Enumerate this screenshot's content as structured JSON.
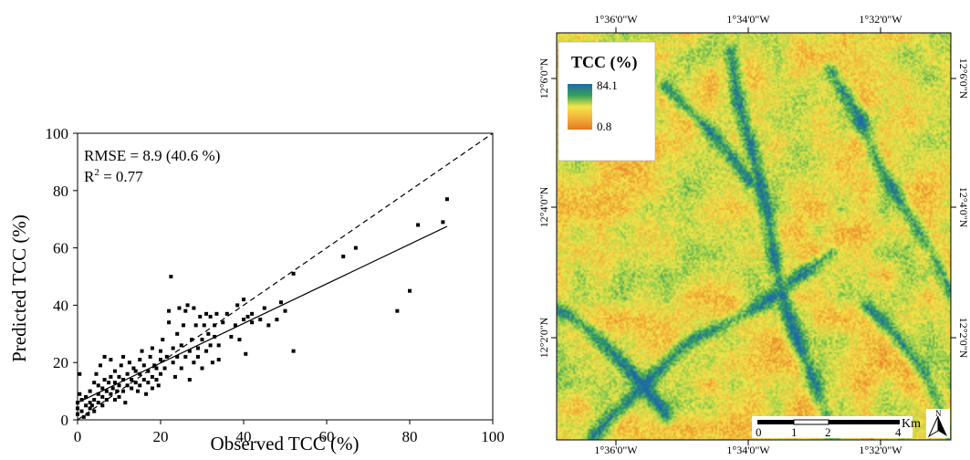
{
  "chart_data": [
    {
      "type": "scatter",
      "title": "",
      "xlabel": "Observed TCC (%)",
      "ylabel": "Predicted TCC (%)",
      "xlim": [
        0,
        100
      ],
      "ylim": [
        0,
        100
      ],
      "x_ticks": [
        "0",
        "20",
        "40",
        "60",
        "80",
        "100"
      ],
      "y_ticks": [
        "0",
        "20",
        "40",
        "60",
        "80",
        "100"
      ],
      "annotation_rmse": "RMSE = 8.9 (40.6 %)",
      "annotation_r2_prefix": "R",
      "annotation_r2_sup": "2",
      "annotation_r2_suffix": " = 0.77",
      "reference_line": {
        "style": "dashed",
        "from": [
          0,
          0
        ],
        "to": [
          100,
          100
        ]
      },
      "fit_line": {
        "style": "solid",
        "from": [
          0,
          6
        ],
        "to": [
          89,
          67.5
        ]
      },
      "points": [
        [
          0,
          2
        ],
        [
          0,
          4
        ],
        [
          0,
          6
        ],
        [
          0.5,
          9
        ],
        [
          0.5,
          16
        ],
        [
          1,
          3
        ],
        [
          1,
          7
        ],
        [
          1.5,
          1
        ],
        [
          2,
          5
        ],
        [
          2,
          8
        ],
        [
          2.5,
          2
        ],
        [
          3,
          4
        ],
        [
          3,
          6
        ],
        [
          3,
          10
        ],
        [
          3.5,
          5
        ],
        [
          4,
          3
        ],
        [
          4,
          7
        ],
        [
          4,
          13
        ],
        [
          4.5,
          16
        ],
        [
          5,
          6
        ],
        [
          5,
          9
        ],
        [
          5,
          12
        ],
        [
          5.5,
          19
        ],
        [
          6,
          5
        ],
        [
          6,
          8
        ],
        [
          6,
          11
        ],
        [
          6.5,
          14
        ],
        [
          6.5,
          22
        ],
        [
          7,
          7
        ],
        [
          7,
          10
        ],
        [
          7.5,
          13
        ],
        [
          8,
          9
        ],
        [
          8,
          15
        ],
        [
          8,
          21
        ],
        [
          8.5,
          11
        ],
        [
          9,
          7
        ],
        [
          9,
          13
        ],
        [
          9,
          17
        ],
        [
          9.5,
          10
        ],
        [
          10,
          8
        ],
        [
          10,
          12
        ],
        [
          10,
          15
        ],
        [
          10.5,
          19
        ],
        [
          11,
          10
        ],
        [
          11,
          14
        ],
        [
          11,
          22
        ],
        [
          11.5,
          6
        ],
        [
          12,
          12
        ],
        [
          12,
          16
        ],
        [
          12.5,
          20
        ],
        [
          13,
          11
        ],
        [
          13,
          14
        ],
        [
          13.5,
          18
        ],
        [
          14,
          13
        ],
        [
          14,
          17
        ],
        [
          14.5,
          10
        ],
        [
          15,
          12
        ],
        [
          15,
          16
        ],
        [
          15,
          21
        ],
        [
          15.5,
          24
        ],
        [
          16,
          14
        ],
        [
          16,
          19
        ],
        [
          16.5,
          9
        ],
        [
          17,
          13
        ],
        [
          17,
          17
        ],
        [
          17.5,
          22
        ],
        [
          18,
          11
        ],
        [
          18,
          15
        ],
        [
          18,
          25
        ],
        [
          18.5,
          19
        ],
        [
          19,
          14
        ],
        [
          19,
          18
        ],
        [
          19.5,
          12
        ],
        [
          20,
          16
        ],
        [
          20,
          21
        ],
        [
          20,
          24
        ],
        [
          20.5,
          28
        ],
        [
          21,
          18
        ],
        [
          21.5,
          22
        ],
        [
          22,
          34
        ],
        [
          22,
          38
        ],
        [
          22.5,
          50
        ],
        [
          23,
          20
        ],
        [
          23,
          25
        ],
        [
          23.5,
          15
        ],
        [
          24,
          22
        ],
        [
          24,
          30
        ],
        [
          24.5,
          39
        ],
        [
          25,
          26
        ],
        [
          25,
          18
        ],
        [
          25.5,
          33
        ],
        [
          26,
          22
        ],
        [
          26,
          38
        ],
        [
          26.5,
          40
        ],
        [
          27,
          24
        ],
        [
          27,
          14
        ],
        [
          27.5,
          28
        ],
        [
          28,
          20
        ],
        [
          28,
          39
        ],
        [
          28.5,
          33
        ],
        [
          29,
          25
        ],
        [
          29,
          22
        ],
        [
          29.5,
          36
        ],
        [
          30,
          28
        ],
        [
          30,
          18
        ],
        [
          30.5,
          33
        ],
        [
          31,
          24
        ],
        [
          31,
          37
        ],
        [
          31.5,
          30
        ],
        [
          32,
          26
        ],
        [
          32,
          36
        ],
        [
          32.5,
          20
        ],
        [
          33,
          29
        ],
        [
          33,
          33
        ],
        [
          33.5,
          37
        ],
        [
          34,
          26
        ],
        [
          34,
          21
        ],
        [
          35,
          34
        ],
        [
          36,
          37
        ],
        [
          37,
          29
        ],
        [
          38,
          33
        ],
        [
          38.5,
          40
        ],
        [
          39,
          28
        ],
        [
          40,
          35
        ],
        [
          40,
          42
        ],
        [
          40.5,
          23
        ],
        [
          41,
          36
        ],
        [
          42,
          34
        ],
        [
          42,
          37
        ],
        [
          44,
          35
        ],
        [
          45,
          39
        ],
        [
          46,
          33
        ],
        [
          48,
          35
        ],
        [
          49,
          41
        ],
        [
          50,
          38
        ],
        [
          52,
          51
        ],
        [
          52,
          24
        ],
        [
          64,
          57
        ],
        [
          67,
          60
        ],
        [
          77,
          38
        ],
        [
          80,
          45
        ],
        [
          82,
          68
        ],
        [
          88,
          69
        ],
        [
          89,
          77
        ]
      ]
    },
    {
      "type": "heatmap",
      "legend_title": "TCC (%)",
      "legend_max": "84.1",
      "legend_min": "0.8",
      "color_scale": [
        "#e07a22",
        "#f2b13a",
        "#f3e64a",
        "#9fd14c",
        "#33a05a",
        "#1f6aa6"
      ],
      "top_ticks": [
        "1°36'0\"W",
        "1°34'0\"W",
        "1°32'0\"W"
      ],
      "bottom_ticks": [
        "1°36'0\"W",
        "1°34'0\"W",
        "1°32'0\"W"
      ],
      "left_ticks": [
        "12°6'0\"N",
        "12°4'0\"N",
        "12°2'0\"N"
      ],
      "right_ticks": [
        "12°6'0\"N",
        "12°4'0\"N",
        "12°2'0\"N"
      ],
      "scale_bar_labels": [
        "0",
        "1",
        "2",
        "4"
      ],
      "scale_bar_unit": "Km",
      "north_label": "N"
    }
  ]
}
